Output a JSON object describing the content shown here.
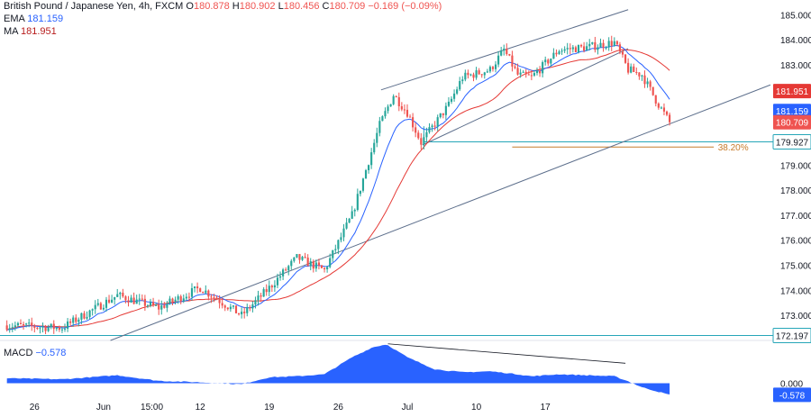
{
  "header": {
    "symbol": "British Pound / Japanese Yen, 4h, FXCM",
    "o_label": "O",
    "o_value": "180.878",
    "h_label": "H",
    "h_value": "180.902",
    "l_label": "L",
    "l_value": "180.456",
    "c_label": "C",
    "c_value": "180.709",
    "change": "−0.169 (−0.09%)",
    "ema_label": "EMA",
    "ema_value": "181.159",
    "ma_label": "MA",
    "ma_value": "181.951"
  },
  "macd_legend": {
    "label": "MACD",
    "value": "−0.578"
  },
  "colors": {
    "up": "#26a69a",
    "down": "#ef5350",
    "ema": "#2962ff",
    "ma": "#e53935",
    "trend": "#5d6f8c",
    "hline": "#26a6b8",
    "fib": "#c67b2b",
    "macd": "#2962ff"
  },
  "chart_data": [
    {
      "type": "candlestick",
      "title": "British Pound / Japanese Yen, 4h, FXCM",
      "x_ticks": [
        "26",
        "Jun",
        "15:00",
        "12",
        "19",
        "26",
        "Jul",
        "10",
        "17"
      ],
      "y_ticks": [
        "173.000",
        "174.000",
        "175.000",
        "176.000",
        "177.000",
        "178.000",
        "179.000",
        "180.000",
        "183.000",
        "184.000",
        "185.000"
      ],
      "ylim": [
        172.0,
        185.3
      ],
      "price_labels": [
        {
          "name": "MA",
          "value": "181.951"
        },
        {
          "name": "EMA",
          "value": "181.159"
        },
        {
          "name": "Close",
          "value": "180.709"
        },
        {
          "name": "Support",
          "value": "179.927"
        },
        {
          "name": "Low line",
          "value": "172.197"
        }
      ],
      "fib_level": {
        "label": "38.20%",
        "value": 179.72
      },
      "horizontal_lines": [
        179.927,
        172.197
      ],
      "anchors": [
        {
          "d": 0,
          "p": 172.6
        },
        {
          "d": 4,
          "p": 172.5
        },
        {
          "d": 8,
          "p": 173.8
        },
        {
          "d": 11,
          "p": 173.3
        },
        {
          "d": 14,
          "p": 174.1
        },
        {
          "d": 17,
          "p": 173.0
        },
        {
          "d": 19,
          "p": 174.1
        },
        {
          "d": 21,
          "p": 175.3
        },
        {
          "d": 23,
          "p": 174.8
        },
        {
          "d": 25,
          "p": 177.0
        },
        {
          "d": 27,
          "p": 180.6
        },
        {
          "d": 28,
          "p": 181.8
        },
        {
          "d": 29,
          "p": 181.1
        },
        {
          "d": 30,
          "p": 179.9
        },
        {
          "d": 32,
          "p": 181.4
        },
        {
          "d": 33,
          "p": 182.5
        },
        {
          "d": 35,
          "p": 182.8
        },
        {
          "d": 36,
          "p": 183.6
        },
        {
          "d": 37,
          "p": 182.6
        },
        {
          "d": 38,
          "p": 182.5
        },
        {
          "d": 40,
          "p": 183.6
        },
        {
          "d": 42,
          "p": 183.7
        },
        {
          "d": 43,
          "p": 183.8
        },
        {
          "d": 44,
          "p": 183.9
        },
        {
          "d": 45,
          "p": 182.8
        },
        {
          "d": 46,
          "p": 182.6
        },
        {
          "d": 47,
          "p": 181.6
        },
        {
          "d": 48,
          "p": 180.7
        }
      ],
      "x_range_days": [
        -0.5,
        55.5
      ],
      "date_ticks_days": [
        2,
        7,
        10.5,
        14,
        19,
        24,
        29,
        34,
        39
      ]
    },
    {
      "type": "area",
      "title": "MACD",
      "value": -0.578,
      "y_ticks": [
        "0.000"
      ],
      "anchors": [
        {
          "d": 0,
          "v": 0.25
        },
        {
          "d": 4,
          "v": 0.2
        },
        {
          "d": 8,
          "v": 0.4
        },
        {
          "d": 11,
          "v": 0.12
        },
        {
          "d": 14,
          "v": 0.05
        },
        {
          "d": 17,
          "v": -0.05
        },
        {
          "d": 19,
          "v": 0.3
        },
        {
          "d": 21,
          "v": 0.35
        },
        {
          "d": 23,
          "v": 0.45
        },
        {
          "d": 25,
          "v": 1.3
        },
        {
          "d": 26.5,
          "v": 1.8
        },
        {
          "d": 27.5,
          "v": 1.95
        },
        {
          "d": 29,
          "v": 1.3
        },
        {
          "d": 31,
          "v": 0.7
        },
        {
          "d": 33,
          "v": 0.55
        },
        {
          "d": 35,
          "v": 0.6
        },
        {
          "d": 37,
          "v": 0.45
        },
        {
          "d": 38,
          "v": 0.35
        },
        {
          "d": 40,
          "v": 0.45
        },
        {
          "d": 42,
          "v": 0.4
        },
        {
          "d": 44,
          "v": 0.35
        },
        {
          "d": 45,
          "v": 0.1
        },
        {
          "d": 46,
          "v": -0.2
        },
        {
          "d": 48,
          "v": -0.578
        }
      ],
      "ylim": [
        -0.65,
        2.05
      ]
    }
  ]
}
